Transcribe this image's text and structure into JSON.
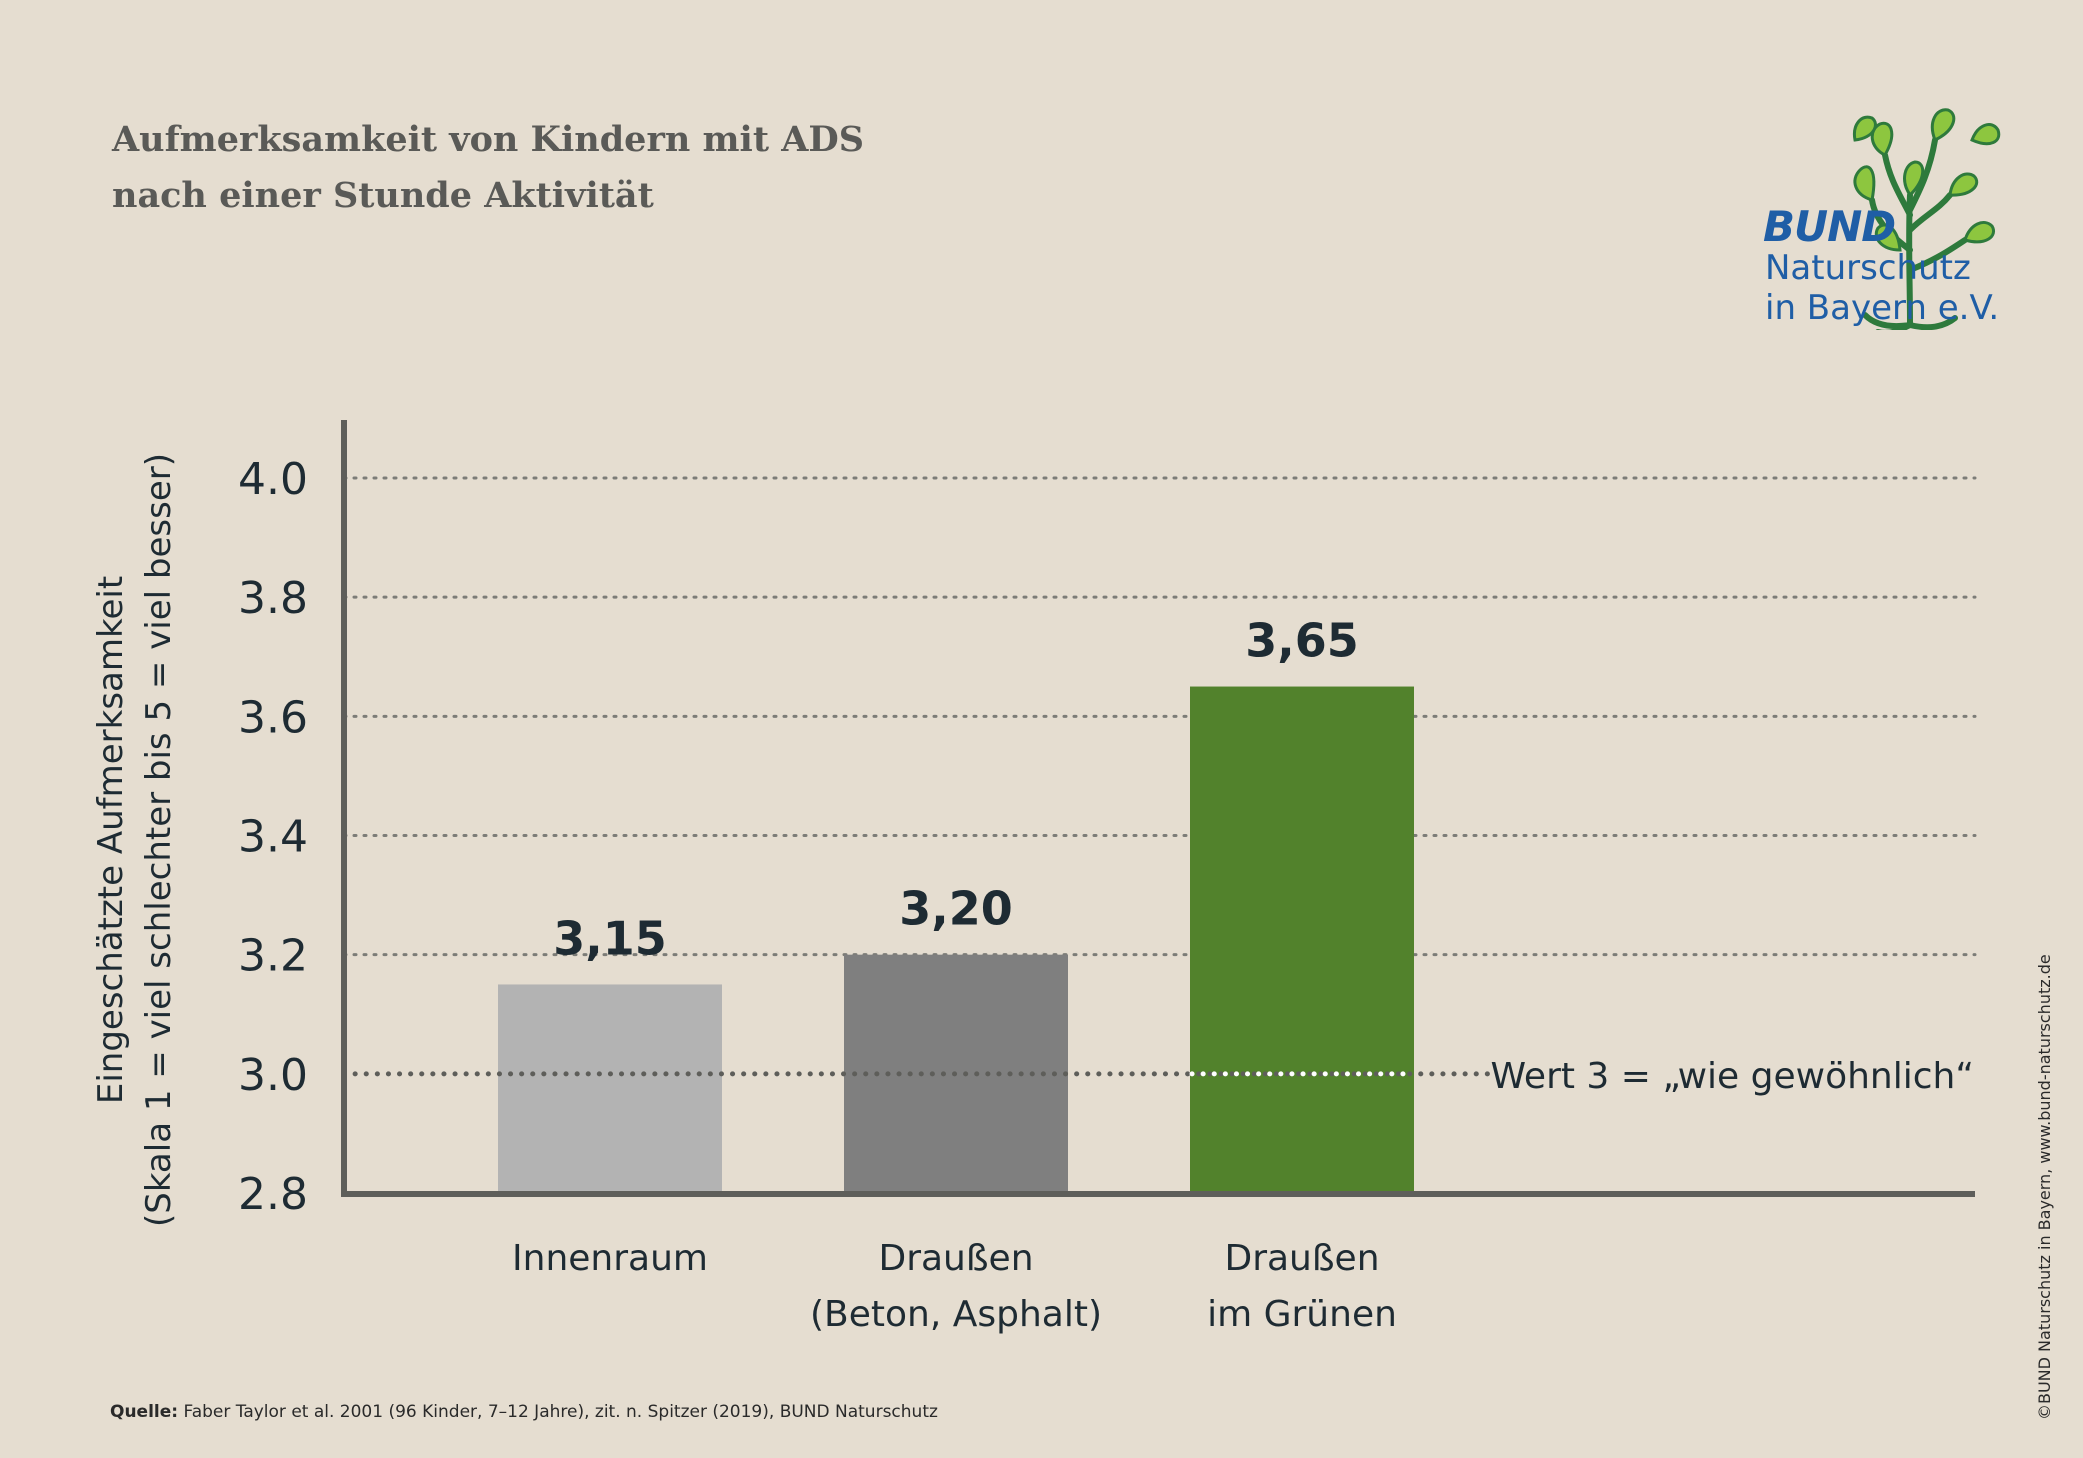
{
  "title_lines": [
    "Aufmerksamkeit von Kindern mit ADS",
    "nach einer Stunde Aktivität"
  ],
  "logo": {
    "brand": "BUND",
    "lines": [
      "Naturschutz",
      "in Bayern e.V."
    ],
    "colors": {
      "text": "#1f5ea6",
      "leaf": "#8dc63f",
      "trunk": "#2e7a3c"
    }
  },
  "source": {
    "label": "Quelle:",
    "text": "Faber Taylor et al. 2001 (96 Kinder, 7–12 Jahre), zit. n. Spitzer (2019), BUND Naturschutz"
  },
  "copyright": "©BUND Naturschutz in Bayern, www.bund-naturschutz.de",
  "chart_data": {
    "type": "bar",
    "categories": [
      [
        "Innenraum"
      ],
      [
        "Draußen",
        "(Beton, Asphalt)"
      ],
      [
        "Draußen",
        "im Grünen"
      ]
    ],
    "values": [
      3.15,
      3.2,
      3.65
    ],
    "value_labels": [
      "3,15",
      "3,20",
      "3,65"
    ],
    "colors": [
      "#b3b3b3",
      "#7f7f7f",
      "#52822c"
    ],
    "ylabel_lines": [
      "Eingeschätzte Aufmerksamkeit",
      "(Skala 1 = viel schlechter bis 5 = viel besser)"
    ],
    "ylim": [
      2.8,
      4.0
    ],
    "yticks": [
      2.8,
      3.0,
      3.2,
      3.4,
      3.6,
      3.8,
      4.0
    ],
    "ytick_labels": [
      "2.8",
      "3.0",
      "3.2",
      "3.4",
      "3.6",
      "3.8",
      "4.0"
    ],
    "grid": true,
    "reference_line": {
      "value": 3.0,
      "label": "Wert 3 = „wie gewöhnlich“"
    }
  }
}
